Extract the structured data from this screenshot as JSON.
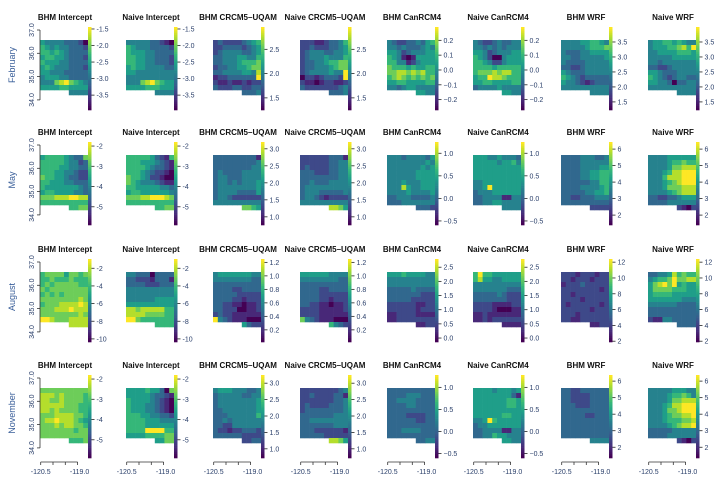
{
  "figure": {
    "months": [
      "February",
      "May",
      "August",
      "November"
    ],
    "y_ticks": [
      "37.0",
      "36.0",
      "35.0",
      "34.0"
    ],
    "x_ticks": [
      "-120.5",
      "-119.0"
    ],
    "colormap": "viridis",
    "label_color": "#3a5f9a"
  },
  "chart_data": [
    {
      "type": "heatmap",
      "month": "February",
      "title": "BHM Intercept",
      "colorbar": {
        "range": [
          -3.95,
          -1.44
        ],
        "ticks": [
          "-1.5",
          "-2.0",
          "-2.5",
          "-3.0",
          "-3.5"
        ]
      },
      "grid": [
        "5444433320",
        "6545443332",
        "6656543333",
        "5665543332",
        "6555443333",
        "5654443332",
        "5544433333",
        "4555443333",
        "4447897654",
        "5555665555",
        "......4444"
      ]
    },
    {
      "type": "heatmap",
      "month": "February",
      "title": "Naive Intercept",
      "colorbar": {
        "range": [
          -3.95,
          -1.44
        ],
        "ticks": [
          "-1.5",
          "-2.0",
          "-2.5",
          "-3.0",
          "-3.5"
        ]
      },
      "grid": [
        "4444433210",
        "6544433332",
        "6555443333",
        "6655443332",
        "6655443332",
        "5655444433",
        "5544444444",
        "4444444444",
        "4447897655",
        "5555666555",
        "......4444"
      ]
    },
    {
      "type": "heatmap",
      "month": "February",
      "title": "BHM CRCM5–UQAM",
      "colorbar": {
        "range": [
          1.25,
          2.96
        ],
        "ticks": [
          "2.5",
          "2.0",
          "1.5"
        ]
      },
      "grid": [
        "2322223456",
        "2233332345",
        "2344443345",
        "3344455446",
        "3344456667",
        "2334455677",
        "3344445548",
        "1223333339",
        "2112112122",
        "3222332233",
        "......3334"
      ]
    },
    {
      "type": "heatmap",
      "month": "February",
      "title": "Naive CRCM5–UQAM",
      "colorbar": {
        "range": [
          1.25,
          2.96
        ],
        "ticks": [
          "2.5",
          "2.0",
          "1.5"
        ]
      },
      "grid": [
        "2221123346",
        "2232223345",
        "2344433445",
        "2344454446",
        "2334456677",
        "2334445677",
        "2344445449",
        "0221233329",
        "2110122112",
        "3222222234",
        "......3334"
      ]
    },
    {
      "type": "heatmap",
      "month": "February",
      "title": "BHM CanRCM4",
      "colorbar": {
        "range": [
          -0.27,
          0.29
        ],
        "ticks": [
          "0.2",
          "0.1",
          "0.0",
          "−0.1",
          "−0.2"
        ]
      },
      "grid": [
        "4322334356",
        "4434333454",
        "5542344455",
        "6541015555",
        "6644124555",
        "7666565566",
        "7788787866",
        "6787676767",
        "5566555566",
        "4434554444",
        "......5544"
      ]
    },
    {
      "type": "heatmap",
      "month": "February",
      "title": "Naive CanRCM4",
      "colorbar": {
        "range": [
          -0.27,
          0.29
        ],
        "ticks": [
          "0.2",
          "0.1",
          "0.0",
          "−0.1",
          "−0.2"
        ]
      },
      "grid": [
        "4322343344",
        "4434343444",
        "5542344455",
        "6542004555",
        "6654224555",
        "6666566666",
        "6777878866",
        "5669887666",
        "5566555566",
        "3444454444",
        "......5544"
      ]
    },
    {
      "type": "heatmap",
      "month": "February",
      "title": "BHM WRF",
      "colorbar": {
        "range": [
          1.23,
          4.0
        ],
        "ticks": [
          "3.5",
          "3.0",
          "2.5",
          "2.0",
          "1.5"
        ]
      },
      "grid": [
        "4444556654",
        "4444456667",
        "4333445555",
        "4433444445",
        "4333344444",
        "3322344444",
        "5433344444",
        "6543233333",
        "5443212333",
        "4444444444",
        "......4444"
      ]
    },
    {
      "type": "heatmap",
      "month": "February",
      "title": "Naive WRF",
      "colorbar": {
        "range": [
          1.23,
          4.0
        ],
        "ticks": [
          "3.5",
          "3.0",
          "2.5",
          "2.0",
          "1.5"
        ]
      },
      "grid": [
        "4556656544",
        "4555667869",
        "4455556665",
        "4444455555",
        "4434444444",
        "3322344444",
        "5543334444",
        "6543234433",
        "5544303344",
        "4444444444",
        "......4444"
      ]
    },
    {
      "type": "heatmap",
      "month": "May",
      "title": "BHM Intercept",
      "colorbar": {
        "range": [
          -5.9,
          -1.8
        ],
        "ticks": [
          "-2",
          "-3",
          "-4",
          "-5"
        ]
      },
      "grid": [
        "5666654337",
        "6666654423",
        "6666554433",
        "6665544322",
        "7665543322",
        "6655544333",
        "6555555543",
        "5665555443",
        "7778889988",
        "6666666666",
        "......6677"
      ]
    },
    {
      "type": "heatmap",
      "month": "May",
      "title": "Naive Intercept",
      "colorbar": {
        "range": [
          -5.9,
          -1.8
        ],
        "ticks": [
          "-2",
          "-3",
          "-4",
          "-5"
        ]
      },
      "grid": [
        "6666653216",
        "6665554321",
        "6666543321",
        "6665432210",
        "7665422100",
        "7654443211",
        "6655555443",
        "5665555554",
        "7778899987",
        "6666666666",
        "......6677"
      ]
    },
    {
      "type": "heatmap",
      "month": "May",
      "title": "BHM CRCM5–UQAM",
      "colorbar": {
        "range": [
          0.76,
          3.2
        ],
        "ticks": [
          "3.0",
          "2.5",
          "2.0",
          "1.5",
          "1.0"
        ]
      },
      "grid": [
        "3333333331",
        "3333333334",
        "3333333344",
        "3433334444",
        "3443334444",
        "3443434445",
        "3444444445",
        "3444433335",
        "3443222222",
        "4444444444",
        "......7765"
      ]
    },
    {
      "type": "heatmap",
      "month": "May",
      "title": "Naive CRCM5–UQAM",
      "colorbar": {
        "range": [
          0.76,
          3.2
        ],
        "ticks": [
          "3.0",
          "2.5",
          "2.0",
          "1.5",
          "1.0"
        ]
      },
      "grid": [
        "2222223331",
        "2222223344",
        "2322223344",
        "3332223344",
        "3333333344",
        "3343334444",
        "3444444444",
        "3444333334",
        "3443212222",
        "4444444444",
        "......8875"
      ]
    },
    {
      "type": "heatmap",
      "month": "May",
      "title": "BHM CanRCM4",
      "colorbar": {
        "range": [
          -0.59,
          1.25
        ],
        "ticks": [
          "1.0",
          "0.5",
          "0.0",
          "−0.5"
        ]
      },
      "grid": [
        "4443444435",
        "4444444454",
        "4444444545",
        "4444445555",
        "4444445555",
        "4445444555",
        "4448544555",
        "4444544445",
        "3344433334",
        "3334444444",
        "......3332"
      ]
    },
    {
      "type": "heatmap",
      "month": "May",
      "title": "Naive CanRCM4",
      "colorbar": {
        "range": [
          -0.59,
          1.25
        ],
        "ticks": [
          "1.0",
          "0.5",
          "0.0",
          "−0.5"
        ]
      },
      "grid": [
        "5554454443",
        "5555545564",
        "5555555555",
        "5555555555",
        "5555555555",
        "4455555555",
        "4459555555",
        "3444555555",
        "3344441144",
        "3344554444",
        "......4444"
      ]
    },
    {
      "type": "heatmap",
      "month": "May",
      "title": "BHM WRF",
      "colorbar": {
        "range": [
          1.4,
          6.43
        ],
        "ticks": [
          "6",
          "5",
          "4",
          "3",
          "2"
        ]
      },
      "grid": [
        "3333444334",
        "3333444444",
        "3333444455",
        "3333445566",
        "3333445566",
        "3333334466",
        "3333444456",
        "3333344556",
        "3322333444",
        "3333333333",
        "......2222"
      ]
    },
    {
      "type": "heatmap",
      "month": "May",
      "title": "Naive WRF",
      "colorbar": {
        "range": [
          1.4,
          6.43
        ],
        "ticks": [
          "6",
          "5",
          "4",
          "3",
          "2"
        ]
      },
      "grid": [
        "4444555555",
        "4444566766",
        "4444577888",
        "4445688999",
        "4446888999",
        "4445678999",
        "4445777888",
        "4444567888",
        "3322334555",
        "3333444444",
        "......2102"
      ]
    },
    {
      "type": "heatmap",
      "month": "August",
      "title": "BHM Intercept",
      "colorbar": {
        "range": [
          -10.35,
          -0.95
        ],
        "ticks": [
          "-2",
          "-4",
          "-6",
          "-8",
          "-10"
        ]
      },
      "grid": [
        "6777757767",
        "6676667666",
        "6767777766",
        "7677777777",
        "6767677777",
        "7777777787",
        "6777888898",
        "7778889888",
        "7777777787",
        "9987778888",
        "......8888"
      ]
    },
    {
      "type": "heatmap",
      "month": "August",
      "title": "Naive Intercept",
      "colorbar": {
        "range": [
          -10.35,
          -0.95
        ],
        "ticks": [
          "-2",
          "-4",
          "-6",
          "-8",
          "-10"
        ]
      },
      "grid": [
        "4433303333",
        "3322213331",
        "3333222333",
        "4444444444",
        "4444444444",
        "4444445555",
        "5555555555",
        "8878888866",
        "8888777766",
        "9976666666",
        "......6666"
      ]
    },
    {
      "type": "heatmap",
      "month": "August",
      "title": "BHM CRCM5–UQAM",
      "colorbar": {
        "range": [
          0.02,
          1.25
        ],
        "ticks": [
          "1.2",
          "1.0",
          "0.8",
          "0.6",
          "0.4",
          "0.2"
        ]
      },
      "grid": [
        "4555555544",
        "4444444433",
        "3333333333",
        "3333223333",
        "3333322222",
        "3333221222",
        "3322110112",
        "3322200112",
        "2322111111",
        "9432111000",
        "......5322"
      ]
    },
    {
      "type": "heatmap",
      "month": "August",
      "title": "Naive CRCM5–UQAM",
      "colorbar": {
        "range": [
          0.02,
          1.25
        ],
        "ticks": [
          "1.2",
          "1.0",
          "0.8",
          "0.6",
          "0.4",
          "0.2"
        ]
      },
      "grid": [
        "5555554444",
        "4444444433",
        "3333333333",
        "3333223333",
        "3333222222",
        "3333221222",
        "3322110112",
        "2222111112",
        "2222111111",
        "7432111000",
        "......6432"
      ]
    },
    {
      "type": "heatmap",
      "month": "August",
      "title": "BHM CanRCM4",
      "colorbar": {
        "range": [
          -0.14,
          2.79
        ],
        "ticks": [
          "2.5",
          "2.0",
          "1.5",
          "1.0",
          "0.5",
          "0.0"
        ]
      },
      "grid": [
        "5556555544",
        "4444444444",
        "4444444444",
        "3333343333",
        "3333333222",
        "3333322222",
        "2222221122",
        "2222221222",
        "1122221111",
        "1122222222",
        "......1122"
      ]
    },
    {
      "type": "heatmap",
      "month": "August",
      "title": "Naive CanRCM4",
      "colorbar": {
        "range": [
          -0.14,
          2.79
        ],
        "ticks": [
          "2.5",
          "2.0",
          "1.5",
          "1.0",
          "0.5",
          "0.0"
        ]
      },
      "grid": [
        "6966555555",
        "6855445555",
        "4444444444",
        "4444444333",
        "3333343222",
        "3333333222",
        "2222111122",
        "2222100011",
        "1121111111",
        "1121222222",
        "......1111"
      ]
    },
    {
      "type": "heatmap",
      "month": "August",
      "title": "BHM WRF",
      "colorbar": {
        "range": [
          1.9,
          12.4
        ],
        "ticks": [
          "12",
          "10",
          "8",
          "6",
          "4",
          "2"
        ]
      },
      "grid": [
        "2221222122",
        "2212221222",
        "1222322222",
        "2222222212",
        "2212222222",
        "2222122222",
        "2122222212",
        "2222221222",
        "2221222222",
        "2211222222",
        "......1122"
      ]
    },
    {
      "type": "heatmap",
      "month": "August",
      "title": "Naive WRF",
      "colorbar": {
        "range": [
          1.9,
          12.4
        ],
        "ticks": [
          "12",
          "10",
          "8",
          "6",
          "4",
          "2"
        ]
      },
      "grid": [
        "3344586766",
        "4566797788",
        "5789795655",
        "5777766655",
        "5666655555",
        "5555555444",
        "4444443333",
        "3333333333",
        "3333333333",
        "2114433333",
        "......3333"
      ]
    },
    {
      "type": "heatmap",
      "month": "November",
      "title": "BHM Intercept",
      "colorbar": {
        "range": [
          -5.9,
          -1.8
        ],
        "ticks": [
          "-2",
          "-3",
          "-4",
          "-5"
        ]
      },
      "grid": [
        "7777777777",
        "8887877776",
        "8877877776",
        "8888877766",
        "8878777766",
        "7778888776",
        "7889888765",
        "7778788776",
        "7777777677",
        "7777777777",
        "......6667"
      ]
    },
    {
      "type": "heatmap",
      "month": "November",
      "title": "Naive Intercept",
      "colorbar": {
        "range": [
          -5.9,
          -1.8
        ],
        "ticks": [
          "-2",
          "-3",
          "-4",
          "-5"
        ]
      },
      "grid": [
        "5555655307",
        "5555543321",
        "6555543210",
        "6555443210",
        "6555443210",
        "6665544332",
        "6666555444",
        "6666555555",
        "6666999966",
        "5555666677",
        "......5577"
      ]
    },
    {
      "type": "heatmap",
      "month": "November",
      "title": "BHM CRCM5–UQAM",
      "colorbar": {
        "range": [
          0.72,
          3.25
        ],
        "ticks": [
          "3.0",
          "2.5",
          "2.0",
          "1.5",
          "1.0"
        ]
      },
      "grid": [
        "4555444334",
        "3444443344",
        "3444444445",
        "3444444445",
        "3344444445",
        "3334444446",
        "3343444444",
        "3322444444",
        "3221223332",
        "3333332222",
        "......2233"
      ]
    },
    {
      "type": "heatmap",
      "month": "November",
      "title": "Naive CRCM5–UQAM",
      "colorbar": {
        "range": [
          0.72,
          3.25
        ],
        "ticks": [
          "3.0",
          "2.5",
          "2.0",
          "1.5",
          "1.0"
        ]
      },
      "grid": [
        "2222222234",
        "2232222331",
        "2222222334",
        "2322223334",
        "2333333334",
        "3333333444",
        "3344444444",
        "3333333444",
        "3332222221",
        "3333322222",
        "......8875"
      ]
    },
    {
      "type": "heatmap",
      "month": "November",
      "title": "BHM CanRCM4",
      "colorbar": {
        "range": [
          -0.6,
          1.28
        ],
        "ticks": [
          "1.0",
          "0.5",
          "0.0",
          "−0.5"
        ]
      },
      "grid": [
        "3333333333",
        "3333444333",
        "3344443333",
        "3333443333",
        "3333333333",
        "3333222233",
        "3333332233",
        "3333333333",
        "3334444333",
        "3333333333",
        "......3344"
      ]
    },
    {
      "type": "heatmap",
      "month": "November",
      "title": "Naive CanRCM4",
      "colorbar": {
        "range": [
          -0.6,
          1.28
        ],
        "ticks": [
          "1.0",
          "0.5",
          "0.0",
          "−0.5"
        ]
      },
      "grid": [
        "5555455545",
        "5555555531",
        "5555555665",
        "5555555665",
        "5555555555",
        "5555556655",
        "4459655555",
        "3445555555",
        "3344441144",
        "3344655444",
        "......5544"
      ]
    },
    {
      "type": "heatmap",
      "month": "November",
      "title": "BHM WRF",
      "colorbar": {
        "range": [
          1.35,
          6.37
        ],
        "ticks": [
          "6",
          "5",
          "4",
          "3",
          "2"
        ]
      },
      "grid": [
        "3322333333",
        "3322223333",
        "3322223333",
        "3332223333",
        "3333333333",
        "3333322333",
        "3333333333",
        "3333333333",
        "3333333333",
        "3333333333",
        "......4444"
      ]
    },
    {
      "type": "heatmap",
      "month": "November",
      "title": "Naive WRF",
      "colorbar": {
        "range": [
          1.35,
          6.37
        ],
        "ticks": [
          "6",
          "5",
          "4",
          "3",
          "2"
        ]
      },
      "grid": [
        "4444455544",
        "4444566764",
        "4444577888",
        "4445688999",
        "4445778999",
        "4445677889",
        "4445666778",
        "4444567889",
        "3333344444",
        "3333444444",
        "......2102"
      ]
    }
  ]
}
